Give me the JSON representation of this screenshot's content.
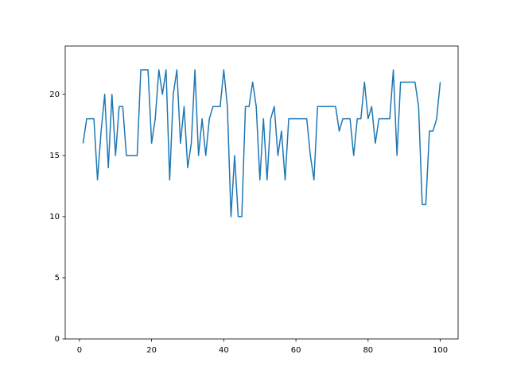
{
  "chart_data": {
    "type": "line",
    "x": [
      1,
      2,
      3,
      4,
      5,
      6,
      7,
      8,
      9,
      10,
      11,
      12,
      13,
      14,
      15,
      16,
      17,
      18,
      19,
      20,
      21,
      22,
      23,
      24,
      25,
      26,
      27,
      28,
      29,
      30,
      31,
      32,
      33,
      34,
      35,
      36,
      37,
      38,
      39,
      40,
      41,
      42,
      43,
      44,
      45,
      46,
      47,
      48,
      49,
      50,
      51,
      52,
      53,
      54,
      55,
      56,
      57,
      58,
      59,
      60,
      61,
      62,
      63,
      64,
      65,
      66,
      67,
      68,
      69,
      70,
      71,
      72,
      73,
      74,
      75,
      76,
      77,
      78,
      79,
      80,
      81,
      82,
      83,
      84,
      85,
      86,
      87,
      88,
      89,
      90,
      91,
      92,
      93,
      94,
      95,
      96,
      97,
      98,
      99,
      100
    ],
    "series": [
      {
        "color": "#1f77b4",
        "values": [
          16,
          18,
          18,
          18,
          13,
          17,
          20,
          14,
          20,
          15,
          19,
          19,
          15,
          15,
          15,
          15,
          22,
          22,
          22,
          16,
          18,
          22,
          20,
          22,
          13,
          20,
          22,
          16,
          19,
          14,
          16,
          22,
          15,
          18,
          15,
          18,
          19,
          19,
          19,
          22,
          19,
          10,
          15,
          10,
          10,
          19,
          19,
          21,
          19,
          13,
          18,
          13,
          18,
          19,
          15,
          17,
          13,
          18,
          18,
          18,
          18,
          18,
          18,
          15,
          13,
          19,
          19,
          19,
          19,
          19,
          19,
          17,
          18,
          18,
          18,
          15,
          18,
          18,
          21,
          18,
          19,
          16,
          18,
          18,
          18,
          18,
          22,
          15,
          21,
          21,
          21,
          21,
          21,
          19,
          11,
          11,
          17,
          17,
          18,
          21
        ]
      }
    ],
    "xlim": [
      -3.95,
      104.95
    ],
    "xticks": [
      0,
      20,
      40,
      60,
      80,
      100
    ],
    "ylim": [
      0,
      23.95
    ],
    "yticks": [
      0,
      5,
      10,
      15,
      20
    ]
  }
}
